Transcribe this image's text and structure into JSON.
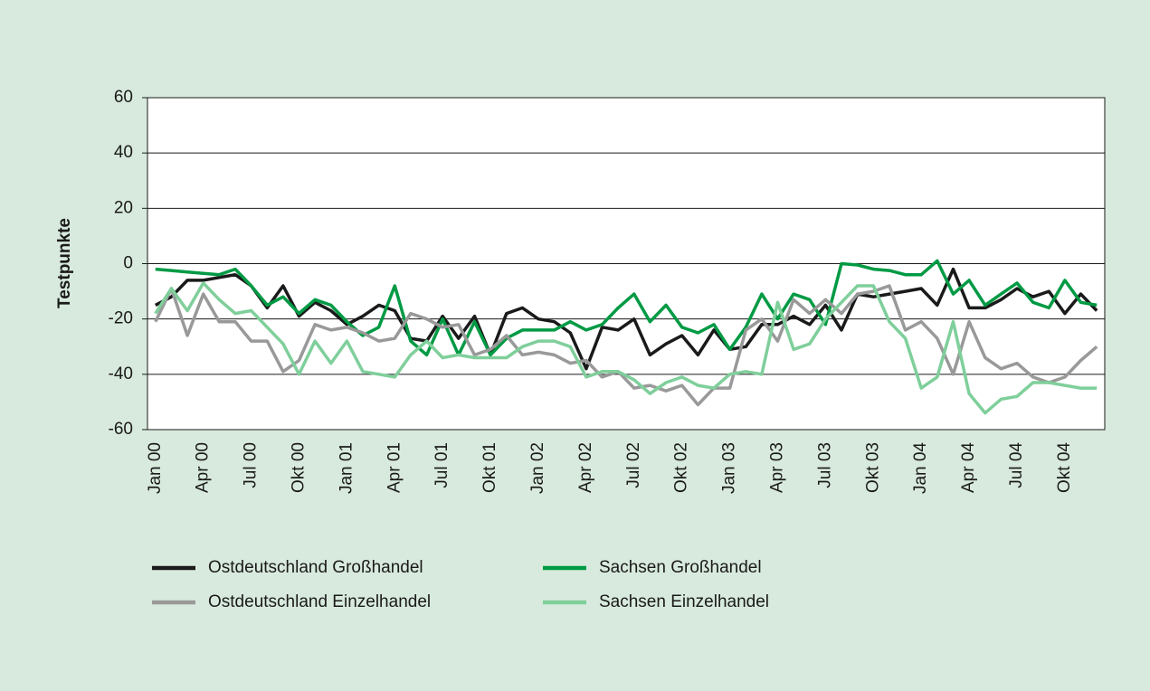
{
  "chart_data": {
    "type": "line",
    "y_label": "Testpunkte",
    "categories": [
      "Jan 00",
      null,
      null,
      "Apr 00",
      null,
      null,
      "Jul 00",
      null,
      null,
      "Okt 00",
      null,
      null,
      "Jan 01",
      null,
      null,
      "Apr 01",
      null,
      null,
      "Jul 01",
      null,
      null,
      "Okt 01",
      null,
      null,
      "Jan 02",
      null,
      null,
      "Apr 02",
      null,
      null,
      "Jul 02",
      null,
      null,
      "Okt 02",
      null,
      null,
      "Jan 03",
      null,
      null,
      "Apr 03",
      null,
      null,
      "Jul 03",
      null,
      null,
      "Okt 03",
      null,
      null,
      "Jan 04",
      null,
      null,
      "Apr 04",
      null,
      null,
      "Jul 04",
      null,
      null,
      "Okt 04",
      null,
      null
    ],
    "series": [
      {
        "name": "Ostdeutschland Großhandel",
        "color": "#1a1a1a",
        "values": [
          -15,
          -12,
          -6,
          -6,
          -5,
          -4,
          -8,
          -16,
          -8,
          -19,
          -14,
          -17,
          -22,
          -19,
          -15,
          -17,
          -27,
          -28,
          -19,
          -27,
          -19,
          -33,
          -18,
          -16,
          -20,
          -21,
          -25,
          -38,
          -23,
          -24,
          -20,
          -33,
          -29,
          -26,
          -33,
          -24,
          -31,
          -30,
          -22,
          -22,
          -19,
          -22,
          -15,
          -24,
          -11,
          -12,
          -11,
          -10,
          -9,
          -15,
          -2,
          -16,
          -16,
          -13,
          -9,
          -12,
          -10,
          -18,
          -11,
          -17
        ]
      },
      {
        "name": "Sachsen Großhandel",
        "color": "#009a44",
        "values": [
          -2,
          -2.5,
          -3,
          -3.5,
          -4,
          -2,
          -8,
          -15,
          -12,
          -18,
          -13,
          -15,
          -21,
          -26,
          -23,
          -8,
          -28,
          -33,
          -20,
          -33,
          -21,
          -33,
          -27,
          -24,
          -24,
          -24,
          -21,
          -24,
          -22,
          -16,
          -11,
          -21,
          -15,
          -23,
          -25,
          -22,
          -31,
          -23,
          -11,
          -20,
          -11,
          -13,
          -22,
          0,
          -0.5,
          -2,
          -2.5,
          -4,
          -4,
          1,
          -11,
          -6,
          -15,
          -11,
          -7,
          -14,
          -16,
          -6,
          -14,
          -15
        ]
      },
      {
        "name": "Ostdeutschland Einzelhandel",
        "color": "#999999",
        "values": [
          -21,
          -9,
          -26,
          -11,
          -21,
          -21,
          -28,
          -28,
          -39,
          -35,
          -22,
          -24,
          -23,
          -25,
          -28,
          -27,
          -18,
          -20,
          -23,
          -22,
          -33,
          -31,
          -26,
          -33,
          -32,
          -33,
          -36,
          -35,
          -41,
          -39,
          -45,
          -44,
          -46,
          -44,
          -51,
          -45,
          -45,
          -24,
          -20,
          -28,
          -13,
          -18,
          -13,
          -18,
          -11,
          -10,
          -8,
          -24,
          -21,
          -27,
          -40,
          -21,
          -34,
          -38,
          -36,
          -41,
          -43,
          -41,
          -35,
          -30
        ]
      },
      {
        "name": "Sachsen Einzelhandel",
        "color": "#7fcf9b",
        "values": [
          -18,
          -9,
          -17,
          -7,
          -13,
          -18,
          -17,
          -23,
          -29,
          -40,
          -28,
          -36,
          -28,
          -39,
          -40,
          -41,
          -33,
          -28,
          -34,
          -33,
          -34,
          -34,
          -34,
          -30,
          -28,
          -28,
          -30,
          -41,
          -39,
          -39,
          -42,
          -47,
          -43,
          -41,
          -44,
          -45,
          -40,
          -39,
          -40,
          -14,
          -31,
          -29,
          -20,
          -14,
          -8,
          -8,
          -21,
          -27,
          -45,
          -41,
          -21,
          -47,
          -54,
          -49,
          -48,
          -43,
          -43,
          -44,
          -45,
          -45
        ]
      }
    ],
    "ylim": [
      -60,
      60
    ],
    "yticks": [
      -60,
      -40,
      -20,
      0,
      20,
      40,
      60
    ],
    "grid": true
  }
}
